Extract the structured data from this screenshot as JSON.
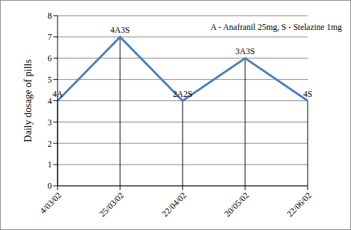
{
  "chart_data": {
    "type": "line",
    "y_label": "Daily dosage of pills",
    "categories": [
      "4/03/02",
      "25/03/02",
      "22/04/02",
      "20/05/02",
      "22/06/02"
    ],
    "values": [
      4,
      7,
      4,
      6,
      4
    ],
    "color": "#4a7ebb",
    "ylim": [
      0,
      8
    ],
    "yticks": [
      0,
      1,
      2,
      3,
      4,
      5,
      6,
      7,
      8
    ],
    "grid": true,
    "annotations": [
      {
        "text": "A - Anafranil 25mg, S - Stelazine 1mg",
        "position": "top-right"
      },
      {
        "x": "4/03/02",
        "text": "4A"
      },
      {
        "x": "25/03/02",
        "text": "4A3S"
      },
      {
        "x": "22/04/02",
        "text": "2A2S"
      },
      {
        "x": "20/05/02",
        "text": "3A3S"
      },
      {
        "x": "22/06/02",
        "text": "4S"
      }
    ]
  }
}
